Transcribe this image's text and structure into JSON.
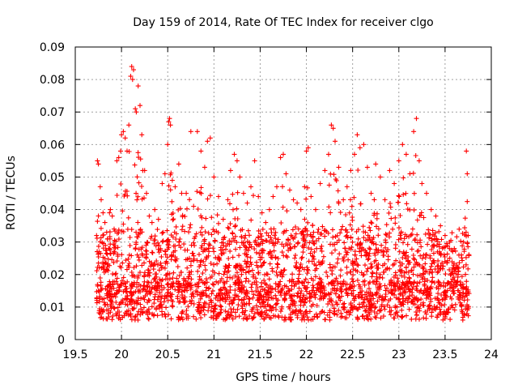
{
  "chart_data": {
    "type": "scatter",
    "title": "Day 159 of 2014, Rate Of TEC Index for receiver clgo",
    "xlabel": "GPS time / hours",
    "ylabel": "ROTI / TECUs",
    "xlim": [
      19.5,
      24
    ],
    "ylim": [
      0,
      0.09
    ],
    "x_ticks": [
      19.5,
      20,
      20.5,
      21,
      21.5,
      22,
      22.5,
      23,
      23.5,
      24
    ],
    "x_tick_labels": [
      "19.5",
      "20",
      "20.5",
      "21",
      "21.5",
      "22",
      "22.5",
      "23",
      "23.5",
      "24"
    ],
    "y_ticks": [
      0,
      0.01,
      0.02,
      0.03,
      0.04,
      0.05,
      0.06,
      0.07,
      0.08,
      0.09
    ],
    "y_tick_labels": [
      "0",
      "0.01",
      "0.02",
      "0.03",
      "0.04",
      "0.05",
      "0.06",
      "0.07",
      "0.08",
      "0.09"
    ],
    "grid": true,
    "marker": "+",
    "color": "#ff0000",
    "series": [
      {
        "name": "ROTI",
        "x_range": [
          19.73,
          23.76
        ],
        "points": [
          [
            19.74,
            0.055
          ],
          [
            19.75,
            0.054
          ],
          [
            19.77,
            0.047
          ],
          [
            19.78,
            0.043
          ],
          [
            19.8,
            0.039
          ],
          [
            19.82,
            0.036
          ],
          [
            19.84,
            0.033
          ],
          [
            19.85,
            0.031
          ],
          [
            19.87,
            0.039
          ],
          [
            19.88,
            0.04
          ],
          [
            19.9,
            0.038
          ],
          [
            19.92,
            0.034
          ],
          [
            19.95,
            0.055
          ],
          [
            19.97,
            0.056
          ],
          [
            19.99,
            0.058
          ],
          [
            20.0,
            0.063
          ],
          [
            20.02,
            0.064
          ],
          [
            20.04,
            0.062
          ],
          [
            20.06,
            0.058
          ],
          [
            20.08,
            0.066
          ],
          [
            20.1,
            0.081
          ],
          [
            20.11,
            0.084
          ],
          [
            20.12,
            0.08
          ],
          [
            20.13,
            0.083
          ],
          [
            20.15,
            0.071
          ],
          [
            20.16,
            0.07
          ],
          [
            20.18,
            0.078
          ],
          [
            20.2,
            0.072
          ],
          [
            20.22,
            0.063
          ],
          [
            20.23,
            0.052
          ],
          [
            20.25,
            0.052
          ],
          [
            20.27,
            0.045
          ],
          [
            20.3,
            0.038
          ],
          [
            20.33,
            0.036
          ],
          [
            20.36,
            0.04
          ],
          [
            20.4,
            0.037
          ],
          [
            20.44,
            0.048
          ],
          [
            20.47,
            0.051
          ],
          [
            20.5,
            0.06
          ],
          [
            20.51,
            0.067
          ],
          [
            20.52,
            0.068
          ],
          [
            20.53,
            0.066
          ],
          [
            20.55,
            0.049
          ],
          [
            20.58,
            0.047
          ],
          [
            20.62,
            0.054
          ],
          [
            20.65,
            0.045
          ],
          [
            20.7,
            0.045
          ],
          [
            20.75,
            0.064
          ],
          [
            20.78,
            0.041
          ],
          [
            20.82,
            0.064
          ],
          [
            20.86,
            0.058
          ],
          [
            20.9,
            0.053
          ],
          [
            20.93,
            0.061
          ],
          [
            20.96,
            0.062
          ],
          [
            21.0,
            0.05
          ],
          [
            21.05,
            0.044
          ],
          [
            21.1,
            0.037
          ],
          [
            21.15,
            0.043
          ],
          [
            21.18,
            0.052
          ],
          [
            21.22,
            0.057
          ],
          [
            21.25,
            0.055
          ],
          [
            21.28,
            0.05
          ],
          [
            21.32,
            0.045
          ],
          [
            21.36,
            0.042
          ],
          [
            21.4,
            0.047
          ],
          [
            21.44,
            0.055
          ],
          [
            21.48,
            0.044
          ],
          [
            21.52,
            0.039
          ],
          [
            21.56,
            0.036
          ],
          [
            21.6,
            0.04
          ],
          [
            21.64,
            0.044
          ],
          [
            21.68,
            0.047
          ],
          [
            21.72,
            0.056
          ],
          [
            21.75,
            0.057
          ],
          [
            21.78,
            0.051
          ],
          [
            21.82,
            0.046
          ],
          [
            21.86,
            0.043
          ],
          [
            21.9,
            0.042
          ],
          [
            21.94,
            0.04
          ],
          [
            21.98,
            0.047
          ],
          [
            22.0,
            0.058
          ],
          [
            22.02,
            0.059
          ],
          [
            22.05,
            0.044
          ],
          [
            22.1,
            0.04
          ],
          [
            22.15,
            0.048
          ],
          [
            22.2,
            0.052
          ],
          [
            22.24,
            0.057
          ],
          [
            22.27,
            0.066
          ],
          [
            22.29,
            0.065
          ],
          [
            22.31,
            0.061
          ],
          [
            22.35,
            0.053
          ],
          [
            22.4,
            0.043
          ],
          [
            22.44,
            0.047
          ],
          [
            22.48,
            0.052
          ],
          [
            22.52,
            0.057
          ],
          [
            22.55,
            0.063
          ],
          [
            22.58,
            0.059
          ],
          [
            22.62,
            0.06
          ],
          [
            22.66,
            0.053
          ],
          [
            22.7,
            0.045
          ],
          [
            22.75,
            0.054
          ],
          [
            22.8,
            0.05
          ],
          [
            22.85,
            0.043
          ],
          [
            22.9,
            0.052
          ],
          [
            22.95,
            0.048
          ],
          [
            23.0,
            0.055
          ],
          [
            23.04,
            0.06
          ],
          [
            23.08,
            0.057
          ],
          [
            23.12,
            0.051
          ],
          [
            23.16,
            0.064
          ],
          [
            23.19,
            0.068
          ],
          [
            23.22,
            0.055
          ],
          [
            23.25,
            0.048
          ],
          [
            23.3,
            0.045
          ],
          [
            23.35,
            0.04
          ],
          [
            23.4,
            0.038
          ],
          [
            23.45,
            0.035
          ],
          [
            23.5,
            0.032
          ],
          [
            23.55,
            0.03
          ],
          [
            23.6,
            0.028
          ],
          [
            23.65,
            0.026
          ],
          [
            23.7,
            0.03
          ],
          [
            23.73,
            0.058
          ],
          [
            23.74,
            0.051
          ],
          [
            23.75,
            0.032
          ]
        ]
      }
    ]
  }
}
